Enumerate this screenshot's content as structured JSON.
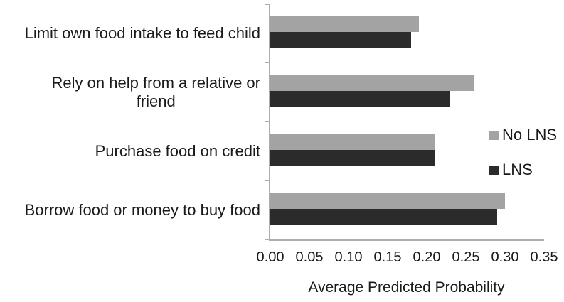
{
  "chart_data": {
    "type": "bar",
    "orientation": "horizontal",
    "title": "",
    "xlabel": "Average Predicted Probability",
    "ylabel": "",
    "categories": [
      "Limit own food intake to feed child",
      "Rely on help from a relative or\nfriend",
      "Purchase food on credit",
      "Borrow food or money to buy food"
    ],
    "series": [
      {
        "name": "No LNS",
        "color": "#a3a3a3",
        "values": [
          0.19,
          0.26,
          0.21,
          0.3
        ]
      },
      {
        "name": "LNS",
        "color": "#2b2b2b",
        "values": [
          0.18,
          0.23,
          0.21,
          0.29
        ]
      }
    ],
    "xlim": [
      0,
      0.35
    ],
    "xtick_labels": [
      "0.00",
      "0.05",
      "0.10",
      "0.15",
      "0.20",
      "0.25",
      "0.30",
      "0.35"
    ],
    "grid": false,
    "legend_position": "right",
    "axis_color": "#adadad",
    "text_color": "#1a1a1a",
    "background": "#ffffff"
  }
}
